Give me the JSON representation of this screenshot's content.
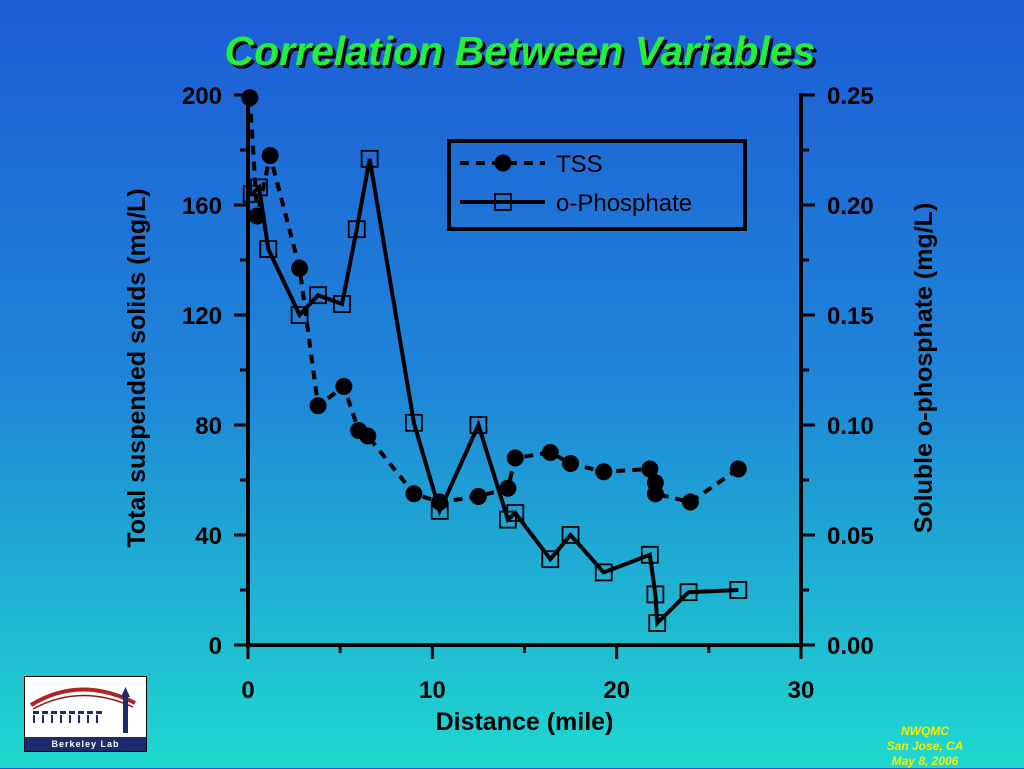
{
  "slide": {
    "title": "Correlation Between Variables",
    "logo_text": "Berkeley Lab",
    "footnote": [
      "NWQMC",
      "San Jose, CA",
      "May 8, 2006"
    ]
  },
  "colors": {
    "title": "#22f03a",
    "footnote": "#f5f000",
    "series": "#000000"
  },
  "chart_data": {
    "type": "line",
    "xlabel": "Distance (mile)",
    "ylabel": "Total suspended solids (mg/L)",
    "y2label": "Soluble o-phosphate (mg/L)",
    "xlim": [
      0,
      30
    ],
    "ylim": [
      0,
      200
    ],
    "y2lim": [
      0,
      0.25
    ],
    "x_ticks": [
      0,
      10,
      20,
      30
    ],
    "y_ticks": [
      0,
      40,
      80,
      120,
      160,
      200
    ],
    "y2_ticks": [
      "0.00",
      "0.05",
      "0.10",
      "0.15",
      "0.20",
      "0.25"
    ],
    "grid": false,
    "legend": "top-right",
    "series": [
      {
        "name": "TSS",
        "axis": "left",
        "style": "dashed-filled-circle",
        "points": [
          [
            0.1,
            199
          ],
          [
            0.5,
            156
          ],
          [
            1.2,
            178
          ],
          [
            2.8,
            137
          ],
          [
            3.8,
            87
          ],
          [
            5.2,
            94
          ],
          [
            6.0,
            78
          ],
          [
            6.5,
            76
          ],
          [
            9.0,
            55
          ],
          [
            10.4,
            52
          ],
          [
            12.5,
            54
          ],
          [
            14.1,
            57
          ],
          [
            14.5,
            68
          ],
          [
            16.4,
            70
          ],
          [
            17.5,
            66
          ],
          [
            19.3,
            63
          ],
          [
            21.8,
            64
          ],
          [
            22.1,
            59
          ],
          [
            22.1,
            55
          ],
          [
            24.0,
            52
          ],
          [
            26.6,
            64
          ]
        ]
      },
      {
        "name": "o-Phosphate",
        "axis": "right",
        "style": "solid-open-square",
        "points": [
          [
            0.2,
            0.205
          ],
          [
            0.6,
            0.208
          ],
          [
            1.1,
            0.18
          ],
          [
            2.8,
            0.15
          ],
          [
            3.8,
            0.159
          ],
          [
            5.1,
            0.155
          ],
          [
            5.9,
            0.189
          ],
          [
            6.6,
            0.221
          ],
          [
            9.0,
            0.101
          ],
          [
            10.4,
            0.061
          ],
          [
            12.5,
            0.1
          ],
          [
            14.1,
            0.057
          ],
          [
            14.5,
            0.06
          ],
          [
            16.4,
            0.039
          ],
          [
            17.5,
            0.05
          ],
          [
            19.3,
            0.033
          ],
          [
            21.8,
            0.041
          ],
          [
            22.1,
            0.023
          ],
          [
            22.2,
            0.01
          ],
          [
            23.9,
            0.024
          ],
          [
            26.6,
            0.025
          ]
        ]
      }
    ]
  }
}
